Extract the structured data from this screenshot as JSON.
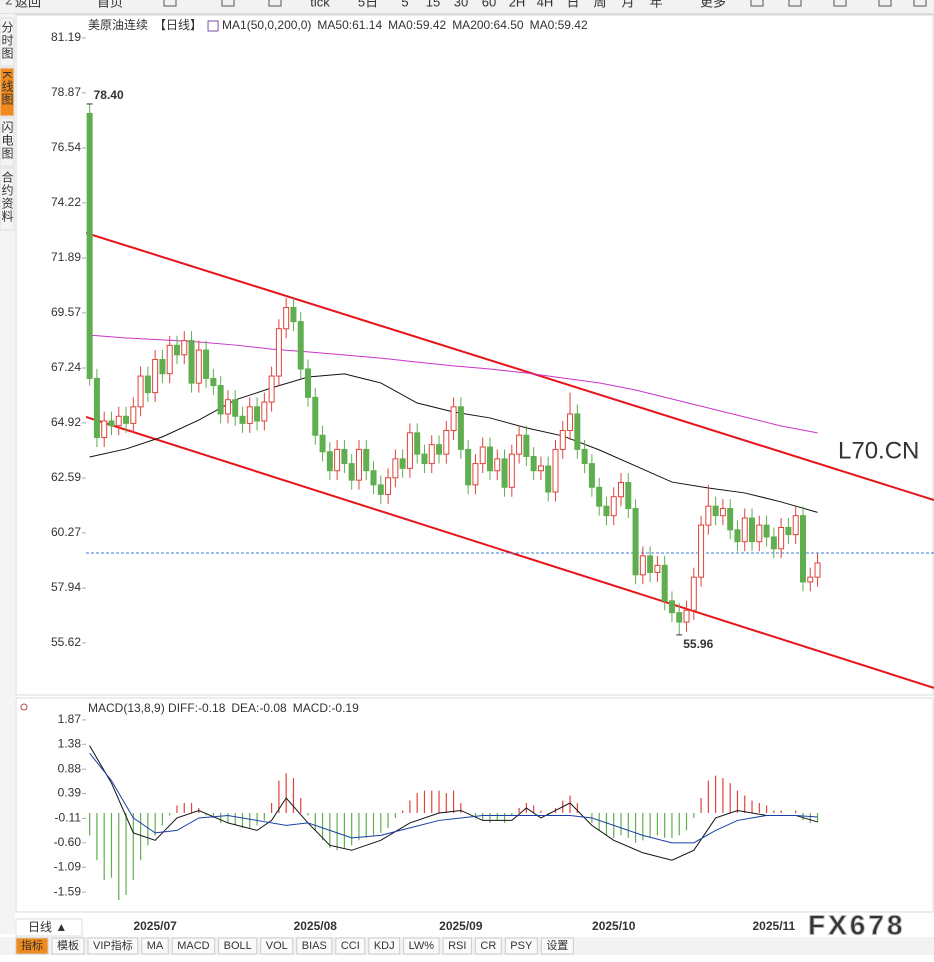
{
  "toolbar": [
    "返回",
    "首页",
    "tick",
    "5日",
    "5",
    "15",
    "30",
    "60",
    "2H",
    "4H",
    "日",
    "周",
    "月",
    "年",
    "更多"
  ],
  "sidebar": [
    "分时图",
    "K线图",
    "闪电图",
    "合约资料"
  ],
  "period_button": "日线 ▲",
  "bottom_tabs": [
    "指标",
    "模板",
    "VIP指标",
    "MA",
    "MACD",
    "BOLL",
    "VOL",
    "BIAS",
    "CCI",
    "KDJ",
    "LW%",
    "RSI",
    "CR",
    "PSY",
    "设置"
  ],
  "watermark": "FX678",
  "chart_data": [
    {
      "type": "candlestick",
      "legend": [
        {
          "label": "美原油连续",
          "color": "#333333"
        },
        {
          "label": "【日线】",
          "color": "#e8891a"
        },
        {
          "label": "MA1(50,0,200,0)",
          "color": "#333333"
        },
        {
          "label": "MA50:61.14",
          "color": "#111111"
        },
        {
          "label": "MA0:59.42",
          "color": "#1a3fa8"
        },
        {
          "label": "MA200:64.50",
          "color": "#cc33cc"
        },
        {
          "label": "MA0:59.42",
          "color": "#e8891a"
        }
      ],
      "callout": "L70.CN",
      "categories": [
        null,
        null,
        null,
        null,
        null,
        null,
        null,
        null,
        null,
        "2025/07",
        null,
        null,
        null,
        null,
        null,
        null,
        null,
        null,
        null,
        null,
        null,
        null,
        null,
        null,
        null,
        null,
        null,
        null,
        null,
        null,
        null,
        "2025/08",
        null,
        null,
        null,
        null,
        null,
        null,
        null,
        null,
        null,
        null,
        null,
        null,
        null,
        null,
        null,
        null,
        null,
        null,
        null,
        "2025/09",
        null,
        null,
        null,
        null,
        null,
        null,
        null,
        null,
        null,
        null,
        null,
        null,
        null,
        null,
        null,
        null,
        null,
        null,
        null,
        null,
        "2025/10",
        null,
        null,
        null,
        null,
        null,
        null,
        null,
        null,
        null,
        null,
        null,
        null,
        null,
        null,
        null,
        null,
        null,
        null,
        null,
        null,
        null,
        "2025/11",
        null,
        null,
        null,
        null,
        null,
        null
      ],
      "xlim": [
        -0.5,
        116
      ],
      "ylim": [
        53.42,
        82.16
      ],
      "yticks": [
        81.19,
        78.87,
        76.54,
        74.22,
        71.89,
        69.57,
        67.24,
        64.92,
        62.59,
        60.27,
        57.94,
        55.62
      ],
      "up_color": "#e0433a",
      "down_color": "#5fae4f",
      "open": [
        78.0,
        66.8,
        64.3,
        65.0,
        64.8,
        65.2,
        64.9,
        65.6,
        66.9,
        66.2,
        67.6,
        67.0,
        68.2,
        67.8,
        68.4,
        66.6,
        68.0,
        66.8,
        66.5,
        65.3,
        65.9,
        65.2,
        64.9,
        65.6,
        65.0,
        65.8,
        66.9,
        68.9,
        69.8,
        69.2,
        67.2,
        66.0,
        64.4,
        63.7,
        62.9,
        63.8,
        63.2,
        62.5,
        63.8,
        62.9,
        62.3,
        61.9,
        62.6,
        63.4,
        63.0,
        64.5,
        63.6,
        63.2,
        64.0,
        63.6,
        64.6,
        65.6,
        63.8,
        62.3,
        63.2,
        63.9,
        62.9,
        63.4,
        62.2,
        63.6,
        64.4,
        63.5,
        62.9,
        63.1,
        62.0,
        63.8,
        64.6,
        65.3,
        63.8,
        63.2,
        62.2,
        61.4,
        61.0,
        61.8,
        62.4,
        61.3,
        58.5,
        59.3,
        58.6,
        58.9,
        57.4,
        56.9,
        56.5,
        57.0,
        58.4,
        60.6,
        61.4,
        61.0,
        61.3,
        60.4,
        59.9,
        60.9,
        59.9,
        60.6,
        60.1,
        59.6,
        60.5,
        60.2,
        61.0,
        58.2,
        58.4
      ],
      "high": [
        78.4,
        67.2,
        65.4,
        65.4,
        65.6,
        65.6,
        66.0,
        67.3,
        67.3,
        68.0,
        68.0,
        68.6,
        68.6,
        68.8,
        68.8,
        68.4,
        68.4,
        67.2,
        66.9,
        66.3,
        66.3,
        65.6,
        66.0,
        66.0,
        66.2,
        67.3,
        69.3,
        70.2,
        70.2,
        69.6,
        67.6,
        66.4,
        64.8,
        64.1,
        64.2,
        64.2,
        63.6,
        64.2,
        64.2,
        63.3,
        62.7,
        63.0,
        63.8,
        63.8,
        64.9,
        64.9,
        64.0,
        64.4,
        64.4,
        65.0,
        66.0,
        66.0,
        64.2,
        63.6,
        64.3,
        64.3,
        63.8,
        63.8,
        64.0,
        64.8,
        64.8,
        63.9,
        63.5,
        63.5,
        64.2,
        65.0,
        66.2,
        65.7,
        64.2,
        63.6,
        62.6,
        61.8,
        62.2,
        62.8,
        62.8,
        61.7,
        59.7,
        59.7,
        59.3,
        59.3,
        57.8,
        57.3,
        57.4,
        58.8,
        61.0,
        62.3,
        61.8,
        61.7,
        61.7,
        60.8,
        61.3,
        61.3,
        61.0,
        61.0,
        60.5,
        60.9,
        60.9,
        61.4,
        61.4,
        58.8,
        59.4
      ],
      "low": [
        66.5,
        63.9,
        63.9,
        64.4,
        64.4,
        64.5,
        64.5,
        65.2,
        65.8,
        65.8,
        66.6,
        66.6,
        67.4,
        67.4,
        66.2,
        66.2,
        66.4,
        66.1,
        64.9,
        64.9,
        64.8,
        64.5,
        64.5,
        64.6,
        64.6,
        65.4,
        66.5,
        68.5,
        68.8,
        66.8,
        65.6,
        64.0,
        63.3,
        62.5,
        62.5,
        62.8,
        62.1,
        62.1,
        62.5,
        61.9,
        61.5,
        61.5,
        62.2,
        62.6,
        62.6,
        63.2,
        62.8,
        62.8,
        63.2,
        63.2,
        64.2,
        63.4,
        61.9,
        61.9,
        62.8,
        62.5,
        62.5,
        61.8,
        61.8,
        63.2,
        63.1,
        62.5,
        62.5,
        61.6,
        61.6,
        63.4,
        64.2,
        63.4,
        62.8,
        61.8,
        61.0,
        60.6,
        60.6,
        61.4,
        60.9,
        58.1,
        58.1,
        58.2,
        58.2,
        57.0,
        56.5,
        55.96,
        56.1,
        56.6,
        58.0,
        60.2,
        60.6,
        60.6,
        60.0,
        59.5,
        59.5,
        59.5,
        59.5,
        59.7,
        59.2,
        59.2,
        59.8,
        59.8,
        57.8,
        57.8,
        58.0
      ],
      "close": [
        66.8,
        64.3,
        65.0,
        64.8,
        65.2,
        64.9,
        65.6,
        66.9,
        66.2,
        67.6,
        67.0,
        68.2,
        67.8,
        68.4,
        66.6,
        68.0,
        66.8,
        66.5,
        65.3,
        65.9,
        65.2,
        64.9,
        65.6,
        65.0,
        65.8,
        66.9,
        68.9,
        69.8,
        69.2,
        67.2,
        66.0,
        64.4,
        63.7,
        62.9,
        63.8,
        63.2,
        62.5,
        63.8,
        62.9,
        62.3,
        61.9,
        62.6,
        63.4,
        63.0,
        64.5,
        63.6,
        63.2,
        64.0,
        63.6,
        64.6,
        65.6,
        63.8,
        62.3,
        63.2,
        63.9,
        62.9,
        63.4,
        62.2,
        63.6,
        64.4,
        63.5,
        62.9,
        63.1,
        62.0,
        63.8,
        64.6,
        65.3,
        63.8,
        63.2,
        62.2,
        61.4,
        61.0,
        61.8,
        62.4,
        61.3,
        58.5,
        59.3,
        58.6,
        58.9,
        57.4,
        56.9,
        56.5,
        57.0,
        58.4,
        60.6,
        61.4,
        61.0,
        61.3,
        60.4,
        59.9,
        60.9,
        59.9,
        60.6,
        60.1,
        59.6,
        60.5,
        60.2,
        61.0,
        58.2,
        58.4,
        59.0
      ],
      "annotations": [
        {
          "label": "78.40",
          "value": 78.4,
          "color": "#c0504d"
        },
        {
          "label": "55.96",
          "value": 55.96,
          "color": "#5a9a4f"
        }
      ],
      "reference_line": {
        "value": 59.42,
        "color": "#3a7bd5"
      },
      "lines": [
        {
          "color": "#111111",
          "x": [
            0,
            5,
            10,
            15,
            20,
            25,
            30,
            35,
            40,
            45,
            50,
            55,
            60,
            65,
            70,
            75,
            80,
            85,
            90,
            95,
            100
          ],
          "values": [
            63.48,
            63.82,
            64.33,
            65.04,
            65.89,
            66.4,
            66.86,
            66.99,
            66.61,
            65.76,
            65.38,
            65.13,
            64.71,
            64.37,
            63.78,
            63.1,
            62.42,
            62.17,
            61.96,
            61.58,
            61.14
          ]
        },
        {
          "color": "#cc33cc",
          "x": [
            0,
            5,
            10,
            15,
            20,
            25,
            30,
            35,
            40,
            45,
            50,
            55,
            60,
            65,
            70,
            75,
            80,
            85,
            90,
            95,
            100
          ],
          "values": [
            68.63,
            68.51,
            68.43,
            68.34,
            68.21,
            68.04,
            67.92,
            67.79,
            67.66,
            67.49,
            67.33,
            67.2,
            67.03,
            66.82,
            66.61,
            66.31,
            65.93,
            65.55,
            65.17,
            64.79,
            64.5
          ]
        }
      ],
      "trendlines": [
        {
          "color": "#e8141a",
          "x": [
            -0.5,
            116
          ],
          "values": [
            72.95,
            61.66
          ]
        },
        {
          "color": "#e8141a",
          "x": [
            -0.5,
            116
          ],
          "values": [
            65.17,
            53.72
          ]
        }
      ]
    },
    {
      "type": "macd",
      "legend": [
        {
          "label": "MACD(13,8,9) DIFF:-0.18",
          "color": "#222222"
        },
        {
          "label": "DEA:-0.08",
          "color": "#1a3fa8"
        },
        {
          "label": "MACD:-0.19",
          "color": "#cc33cc"
        }
      ],
      "xlim": [
        -0.5,
        116
      ],
      "ylim": [
        -1.99,
        2.27
      ],
      "yticks": [
        1.87,
        1.38,
        0.88,
        0.39,
        -0.11,
        {
          "value": -0.6,
          "label": "-0.60"
        },
        -1.09,
        -1.59
      ],
      "histogram": {
        "up_color": "#e0433a",
        "down_color": "#5fae4f",
        "values": [
          -0.45,
          -0.95,
          -1.35,
          -1.3,
          -1.75,
          -1.65,
          -1.35,
          -0.95,
          -0.65,
          -0.45,
          -0.25,
          -0.05,
          0.15,
          0.2,
          0.2,
          0.1,
          -0.05,
          -0.1,
          -0.2,
          -0.2,
          -0.25,
          -0.3,
          -0.3,
          -0.25,
          -0.15,
          0.2,
          0.65,
          0.8,
          0.7,
          0.3,
          -0.05,
          -0.35,
          -0.55,
          -0.7,
          -0.75,
          -0.7,
          -0.65,
          -0.55,
          -0.5,
          -0.45,
          -0.4,
          -0.3,
          -0.1,
          0.05,
          0.25,
          0.4,
          0.45,
          0.45,
          0.45,
          0.4,
          0.45,
          0.2,
          0,
          -0.1,
          -0.15,
          -0.2,
          -0.15,
          -0.2,
          -0.05,
          0.1,
          0.2,
          0.15,
          0.05,
          -0.05,
          0.1,
          0.25,
          0.35,
          0.2,
          0,
          -0.2,
          -0.35,
          -0.45,
          -0.5,
          -0.45,
          -0.5,
          -0.6,
          -0.55,
          -0.5,
          -0.45,
          -0.5,
          -0.5,
          -0.45,
          -0.35,
          -0.1,
          0.3,
          0.65,
          0.75,
          0.7,
          0.6,
          0.45,
          0.35,
          0.25,
          0.2,
          0.15,
          0.05,
          0.05,
          0,
          0.05,
          -0.15,
          -0.2,
          -0.19
        ]
      },
      "lines": [
        {
          "color": "#111111",
          "x": [
            0,
            3,
            6,
            9,
            12,
            15,
            19,
            23,
            25,
            27,
            30,
            33,
            36,
            40,
            44,
            48,
            51,
            54,
            58,
            60,
            62,
            64,
            66,
            69,
            72,
            76,
            80,
            83,
            86,
            89,
            93,
            97,
            100
          ],
          "values": [
            1.35,
            0.6,
            -0.4,
            -0.55,
            -0.1,
            0.05,
            -0.2,
            -0.35,
            -0.15,
            0.3,
            -0.2,
            -0.65,
            -0.75,
            -0.55,
            -0.2,
            0,
            0.05,
            -0.15,
            -0.15,
            0.1,
            -0.1,
            0.05,
            0.2,
            -0.25,
            -0.55,
            -0.8,
            -0.95,
            -0.75,
            -0.1,
            0.05,
            -0.05,
            -0.05,
            -0.18
          ]
        },
        {
          "color": "#1a3fa8",
          "x": [
            0,
            3,
            6,
            9,
            12,
            15,
            19,
            23,
            27,
            30,
            33,
            36,
            40,
            44,
            48,
            51,
            54,
            58,
            62,
            66,
            69,
            72,
            76,
            80,
            83,
            86,
            89,
            93,
            97,
            100
          ],
          "values": [
            1.2,
            0.65,
            -0.1,
            -0.4,
            -0.35,
            -0.1,
            -0.05,
            -0.15,
            -0.25,
            -0.2,
            -0.35,
            -0.5,
            -0.45,
            -0.3,
            -0.15,
            -0.1,
            -0.05,
            -0.05,
            -0.05,
            -0.05,
            -0.1,
            -0.25,
            -0.45,
            -0.6,
            -0.6,
            -0.35,
            -0.15,
            -0.05,
            -0.05,
            -0.08
          ]
        }
      ]
    }
  ]
}
